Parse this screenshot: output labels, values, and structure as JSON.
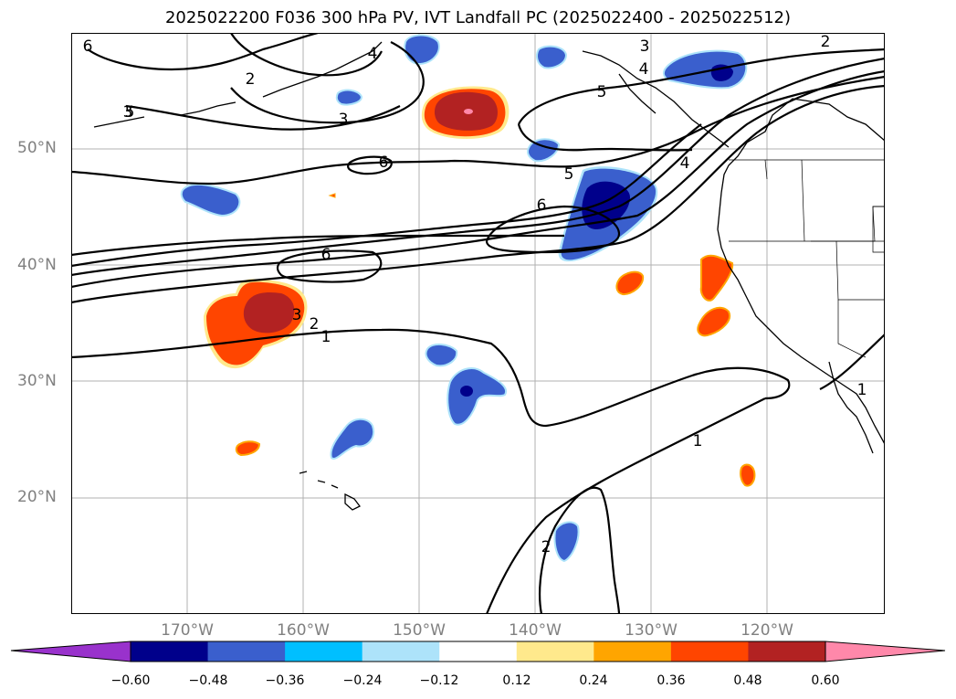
{
  "title": "2025022200 F036 300 hPa PV, IVT Landfall PC (2025022400 - 2025022512)",
  "lat_labels": [
    "50°N",
    "40°N",
    "30°N",
    "20°N"
  ],
  "lon_labels": [
    "170°W",
    "160°W",
    "150°W",
    "140°W",
    "130°W",
    "120°W"
  ],
  "contour_labels": [
    "6",
    "2",
    "3",
    "3",
    "4",
    "2",
    "5",
    "3",
    "4",
    "5",
    "6",
    "5",
    "6",
    "6",
    "4",
    "3",
    "2",
    "1",
    "2",
    "1",
    "1"
  ],
  "colorbar": {
    "ticks": [
      "−0.60",
      "−0.48",
      "−0.36",
      "−0.24",
      "−0.12",
      "0.12",
      "0.24",
      "0.36",
      "0.48",
      "0.60"
    ],
    "colors": [
      "#9932CC",
      "#00008B",
      "#3A5FCD",
      "#00BFFF",
      "#ADE3FA",
      "#FFFFFF",
      "#FFE98C",
      "#FFA500",
      "#FF4500",
      "#B22222",
      "#FF88AA"
    ]
  },
  "colors": {
    "contour": "#000000",
    "coast": "#000000",
    "grid": "#b0b0b0",
    "axis_label": "#808080"
  }
}
